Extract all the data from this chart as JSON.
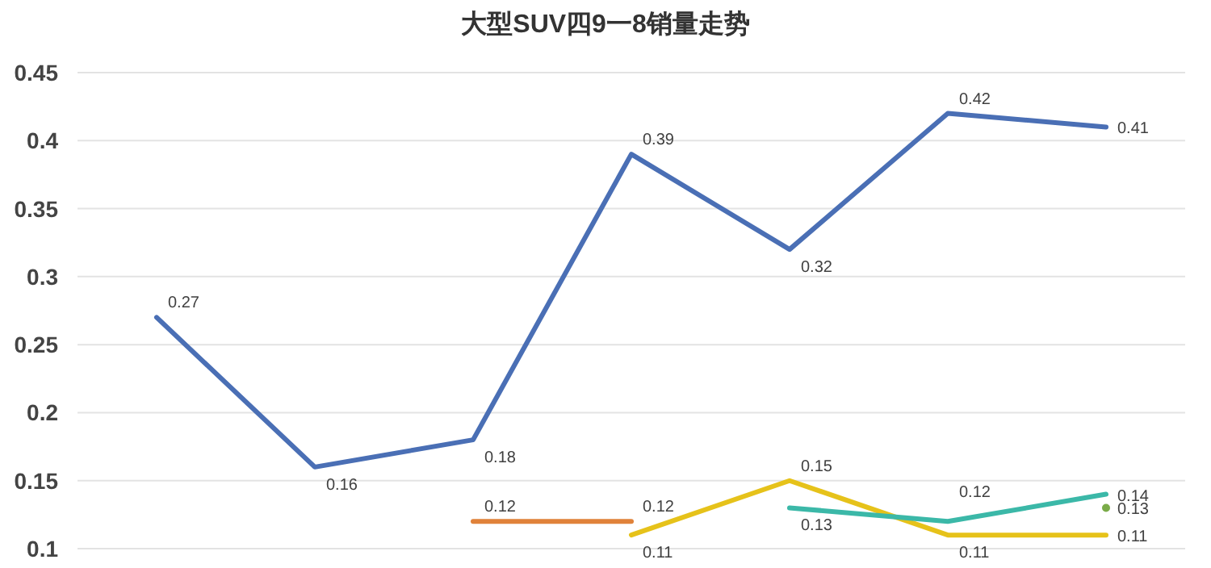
{
  "chart_data": {
    "type": "line",
    "title": "大型SUV四9一8销量走势",
    "categories": [
      null,
      null,
      null,
      null,
      null,
      null,
      null
    ],
    "series": [
      {
        "color": "#4a6fb5",
        "values": [
          0.27,
          0.16,
          0.18,
          0.39,
          0.32,
          0.42,
          0.41
        ]
      },
      {
        "color": "#e0823a",
        "values": [
          null,
          null,
          0.12,
          0.12,
          null,
          null,
          null
        ]
      },
      {
        "color": "#e6c21a",
        "values": [
          null,
          null,
          null,
          0.11,
          0.15,
          0.11,
          0.11
        ]
      },
      {
        "color": "#3bb8a8",
        "values": [
          null,
          null,
          null,
          null,
          0.13,
          0.12,
          0.14
        ]
      },
      {
        "color": "#7aab48",
        "marker": "circle",
        "values": [
          null,
          null,
          null,
          null,
          null,
          null,
          0.13
        ]
      }
    ],
    "ylim": [
      0.1,
      0.45
    ],
    "yticks": [
      0.1,
      0.15,
      0.2,
      0.25,
      0.3,
      0.35,
      0.4,
      0.45
    ],
    "grid": "y",
    "data_labels": true,
    "line_style": "solid"
  }
}
